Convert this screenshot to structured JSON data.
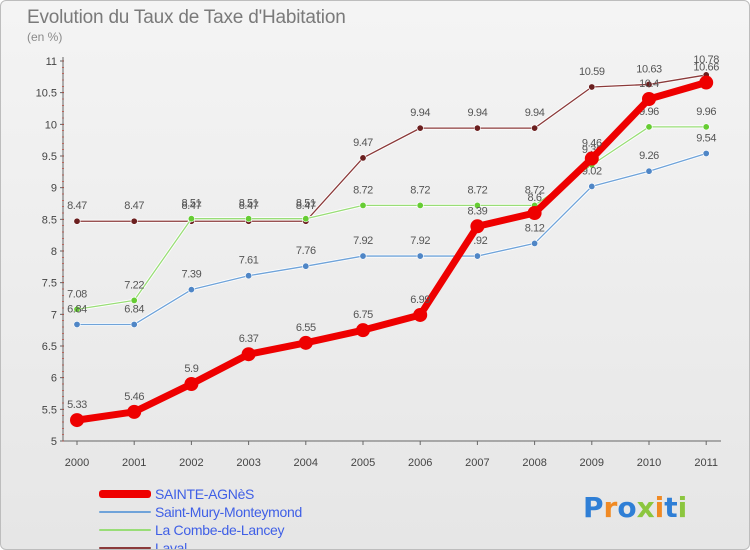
{
  "header": {
    "title": "Evolution du Taux de Taxe d'Habitation",
    "subtitle": "(en %)"
  },
  "logo": {
    "text": "Proxiti",
    "letters": [
      {
        "ch": "P",
        "color": "#2f7fd6"
      },
      {
        "ch": "r",
        "color": "#f08a24"
      },
      {
        "ch": "o",
        "color": "#2f7fd6"
      },
      {
        "ch": "x",
        "color": "#8cc63f"
      },
      {
        "ch": "i",
        "color": "#f08a24"
      },
      {
        "ch": "t",
        "color": "#2f7fd6"
      },
      {
        "ch": "i",
        "color": "#8cc63f"
      }
    ]
  },
  "chart_data": {
    "type": "line",
    "title": "Evolution du Taux de Taxe d'Habitation",
    "subtitle": "(en %)",
    "xlabel": "",
    "ylabel": "",
    "categories": [
      "2000",
      "2001",
      "2002",
      "2003",
      "2004",
      "2005",
      "2006",
      "2007",
      "2008",
      "2009",
      "2010",
      "2011"
    ],
    "ylim": [
      5,
      11
    ],
    "yticks": [
      "5",
      "5.5",
      "6",
      "6.5",
      "7",
      "7.5",
      "8",
      "8.5",
      "9",
      "9.5",
      "10",
      "10.5",
      "11"
    ],
    "grid": false,
    "legend_position": "bottom-left",
    "series": [
      {
        "name": "Laval",
        "color": "#8b3a3a",
        "marker": "#6b1f1f",
        "values": [
          8.47,
          8.47,
          8.47,
          8.47,
          8.47,
          9.47,
          9.94,
          9.94,
          9.94,
          10.59,
          10.63,
          10.78
        ],
        "labels": [
          "8.47",
          "8.47",
          "8.47",
          "8.47",
          "8.47",
          "9.47",
          "9.94",
          "9.94",
          "9.94",
          "10.59",
          "10.63",
          "10.78"
        ]
      },
      {
        "name": "La Combe-de-Lancey",
        "color": "#99dd77",
        "marker": "#66cc33",
        "values": [
          7.08,
          7.22,
          8.51,
          8.51,
          8.51,
          8.72,
          8.72,
          8.72,
          8.72,
          9.36,
          9.96,
          9.96
        ],
        "labels": [
          "7.08",
          "7.22",
          "8.51",
          "8.51",
          "8.51",
          "8.72",
          "8.72",
          "8.72",
          "8.72",
          "9.36",
          "9.96",
          "9.96"
        ]
      },
      {
        "name": "Saint-Mury-Monteymond",
        "color": "#6fa3d9",
        "marker": "#4f86c6",
        "values": [
          6.84,
          6.84,
          7.39,
          7.61,
          7.76,
          7.92,
          7.92,
          7.92,
          8.12,
          9.02,
          9.26,
          9.54
        ],
        "labels": [
          "6.84",
          "6.84",
          "7.39",
          "7.61",
          "7.76",
          "7.92",
          "7.92",
          "7.92",
          "8.12",
          "9.02",
          "9.26",
          "9.54"
        ]
      },
      {
        "name": "SAINTE-AGNèS",
        "color": "#ee0000",
        "marker": "#ee0000",
        "values": [
          5.33,
          5.46,
          5.9,
          6.37,
          6.55,
          6.75,
          6.99,
          8.39,
          8.6,
          9.46,
          10.4,
          10.66
        ],
        "labels": [
          "5.33",
          "5.46",
          "5.9",
          "6.37",
          "6.55",
          "6.75",
          "6.99",
          "8.39",
          "8.6",
          "9.46",
          "10.4",
          "10.66"
        ]
      }
    ]
  }
}
